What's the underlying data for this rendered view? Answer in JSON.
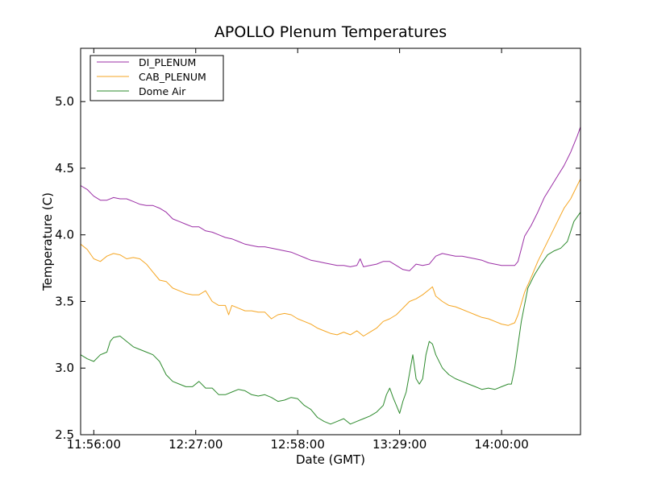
{
  "chart_data": {
    "type": "line",
    "title": "APOLLO Plenum Temperatures",
    "xlabel": "Date (GMT)",
    "ylabel": "Temperature (C)",
    "xlim": [
      -4,
      148
    ],
    "ylim": [
      2.5,
      5.4
    ],
    "x_unit": "minutes after 11:56:00",
    "xticks": [
      {
        "value": 0,
        "label": "11:56:00"
      },
      {
        "value": 31,
        "label": "12:27:00"
      },
      {
        "value": 62,
        "label": "12:58:00"
      },
      {
        "value": 93,
        "label": "13:29:00"
      },
      {
        "value": 124,
        "label": "14:00:00"
      }
    ],
    "yticks": [
      {
        "value": 2.5,
        "label": "2.5"
      },
      {
        "value": 3.0,
        "label": "3.0"
      },
      {
        "value": 3.5,
        "label": "3.5"
      },
      {
        "value": 4.0,
        "label": "4.0"
      },
      {
        "value": 4.5,
        "label": "4.5"
      },
      {
        "value": 5.0,
        "label": "5.0"
      }
    ],
    "legend": {
      "placement": "top-left"
    },
    "series": [
      {
        "name": "DI_PLENUM",
        "color": "#9b2fa6",
        "points": [
          [
            -4,
            4.37
          ],
          [
            -2,
            4.34
          ],
          [
            0,
            4.29
          ],
          [
            2,
            4.26
          ],
          [
            4,
            4.26
          ],
          [
            6,
            4.28
          ],
          [
            8,
            4.27
          ],
          [
            10,
            4.27
          ],
          [
            12,
            4.25
          ],
          [
            14,
            4.23
          ],
          [
            16,
            4.22
          ],
          [
            18,
            4.22
          ],
          [
            20,
            4.2
          ],
          [
            22,
            4.17
          ],
          [
            24,
            4.12
          ],
          [
            26,
            4.1
          ],
          [
            28,
            4.08
          ],
          [
            30,
            4.06
          ],
          [
            32,
            4.06
          ],
          [
            34,
            4.03
          ],
          [
            36,
            4.02
          ],
          [
            38,
            4.0
          ],
          [
            40,
            3.98
          ],
          [
            42,
            3.97
          ],
          [
            44,
            3.95
          ],
          [
            46,
            3.93
          ],
          [
            48,
            3.92
          ],
          [
            50,
            3.91
          ],
          [
            52,
            3.91
          ],
          [
            54,
            3.9
          ],
          [
            56,
            3.89
          ],
          [
            58,
            3.88
          ],
          [
            60,
            3.87
          ],
          [
            62,
            3.85
          ],
          [
            64,
            3.83
          ],
          [
            66,
            3.81
          ],
          [
            68,
            3.8
          ],
          [
            70,
            3.79
          ],
          [
            72,
            3.78
          ],
          [
            74,
            3.77
          ],
          [
            76,
            3.77
          ],
          [
            78,
            3.76
          ],
          [
            80,
            3.77
          ],
          [
            81,
            3.82
          ],
          [
            82,
            3.76
          ],
          [
            84,
            3.77
          ],
          [
            86,
            3.78
          ],
          [
            88,
            3.8
          ],
          [
            90,
            3.8
          ],
          [
            92,
            3.77
          ],
          [
            94,
            3.74
          ],
          [
            96,
            3.73
          ],
          [
            98,
            3.78
          ],
          [
            100,
            3.77
          ],
          [
            102,
            3.78
          ],
          [
            104,
            3.84
          ],
          [
            106,
            3.86
          ],
          [
            108,
            3.85
          ],
          [
            110,
            3.84
          ],
          [
            112,
            3.84
          ],
          [
            114,
            3.83
          ],
          [
            116,
            3.82
          ],
          [
            118,
            3.81
          ],
          [
            120,
            3.79
          ],
          [
            122,
            3.78
          ],
          [
            124,
            3.77
          ],
          [
            126,
            3.77
          ],
          [
            127,
            3.77
          ],
          [
            128,
            3.77
          ],
          [
            129,
            3.8
          ],
          [
            131,
            3.99
          ],
          [
            133,
            4.07
          ],
          [
            135,
            4.17
          ],
          [
            137,
            4.28
          ],
          [
            139,
            4.36
          ],
          [
            141,
            4.44
          ],
          [
            143,
            4.52
          ],
          [
            145,
            4.62
          ],
          [
            147,
            4.74
          ],
          [
            148,
            4.81
          ]
        ]
      },
      {
        "name": "CAB_PLENUM",
        "color": "#f5a623",
        "points": [
          [
            -4,
            3.93
          ],
          [
            -2,
            3.89
          ],
          [
            0,
            3.82
          ],
          [
            2,
            3.8
          ],
          [
            4,
            3.84
          ],
          [
            6,
            3.86
          ],
          [
            8,
            3.85
          ],
          [
            10,
            3.82
          ],
          [
            12,
            3.83
          ],
          [
            14,
            3.82
          ],
          [
            16,
            3.78
          ],
          [
            18,
            3.72
          ],
          [
            20,
            3.66
          ],
          [
            22,
            3.65
          ],
          [
            24,
            3.6
          ],
          [
            26,
            3.58
          ],
          [
            28,
            3.56
          ],
          [
            30,
            3.55
          ],
          [
            32,
            3.55
          ],
          [
            34,
            3.58
          ],
          [
            36,
            3.5
          ],
          [
            38,
            3.47
          ],
          [
            40,
            3.47
          ],
          [
            41,
            3.4
          ],
          [
            42,
            3.47
          ],
          [
            44,
            3.45
          ],
          [
            46,
            3.43
          ],
          [
            48,
            3.43
          ],
          [
            50,
            3.42
          ],
          [
            52,
            3.42
          ],
          [
            54,
            3.37
          ],
          [
            56,
            3.4
          ],
          [
            58,
            3.41
          ],
          [
            60,
            3.4
          ],
          [
            62,
            3.37
          ],
          [
            64,
            3.35
          ],
          [
            66,
            3.33
          ],
          [
            68,
            3.3
          ],
          [
            70,
            3.28
          ],
          [
            72,
            3.26
          ],
          [
            74,
            3.25
          ],
          [
            76,
            3.27
          ],
          [
            78,
            3.25
          ],
          [
            80,
            3.28
          ],
          [
            82,
            3.24
          ],
          [
            84,
            3.27
          ],
          [
            86,
            3.3
          ],
          [
            88,
            3.35
          ],
          [
            90,
            3.37
          ],
          [
            92,
            3.4
          ],
          [
            94,
            3.45
          ],
          [
            96,
            3.5
          ],
          [
            98,
            3.52
          ],
          [
            100,
            3.55
          ],
          [
            102,
            3.59
          ],
          [
            103,
            3.61
          ],
          [
            104,
            3.54
          ],
          [
            106,
            3.5
          ],
          [
            108,
            3.47
          ],
          [
            110,
            3.46
          ],
          [
            112,
            3.44
          ],
          [
            114,
            3.42
          ],
          [
            116,
            3.4
          ],
          [
            118,
            3.38
          ],
          [
            120,
            3.37
          ],
          [
            122,
            3.35
          ],
          [
            124,
            3.33
          ],
          [
            126,
            3.32
          ],
          [
            127,
            3.33
          ],
          [
            128,
            3.34
          ],
          [
            129,
            3.4
          ],
          [
            131,
            3.57
          ],
          [
            133,
            3.68
          ],
          [
            135,
            3.8
          ],
          [
            137,
            3.9
          ],
          [
            139,
            4.0
          ],
          [
            141,
            4.1
          ],
          [
            143,
            4.2
          ],
          [
            145,
            4.27
          ],
          [
            147,
            4.37
          ],
          [
            148,
            4.42
          ]
        ]
      },
      {
        "name": "Dome Air",
        "color": "#2e8b2e",
        "points": [
          [
            -4,
            3.1
          ],
          [
            -2,
            3.07
          ],
          [
            0,
            3.05
          ],
          [
            2,
            3.1
          ],
          [
            4,
            3.12
          ],
          [
            5,
            3.2
          ],
          [
            6,
            3.23
          ],
          [
            8,
            3.24
          ],
          [
            10,
            3.2
          ],
          [
            12,
            3.16
          ],
          [
            14,
            3.14
          ],
          [
            16,
            3.12
          ],
          [
            18,
            3.1
          ],
          [
            20,
            3.05
          ],
          [
            22,
            2.95
          ],
          [
            24,
            2.9
          ],
          [
            26,
            2.88
          ],
          [
            28,
            2.86
          ],
          [
            30,
            2.86
          ],
          [
            32,
            2.9
          ],
          [
            34,
            2.85
          ],
          [
            36,
            2.85
          ],
          [
            38,
            2.8
          ],
          [
            40,
            2.8
          ],
          [
            42,
            2.82
          ],
          [
            44,
            2.84
          ],
          [
            46,
            2.83
          ],
          [
            48,
            2.8
          ],
          [
            50,
            2.79
          ],
          [
            52,
            2.8
          ],
          [
            54,
            2.78
          ],
          [
            56,
            2.75
          ],
          [
            58,
            2.76
          ],
          [
            60,
            2.78
          ],
          [
            62,
            2.77
          ],
          [
            64,
            2.72
          ],
          [
            66,
            2.69
          ],
          [
            68,
            2.63
          ],
          [
            70,
            2.6
          ],
          [
            72,
            2.58
          ],
          [
            74,
            2.6
          ],
          [
            76,
            2.62
          ],
          [
            78,
            2.58
          ],
          [
            80,
            2.6
          ],
          [
            82,
            2.62
          ],
          [
            84,
            2.64
          ],
          [
            86,
            2.67
          ],
          [
            88,
            2.72
          ],
          [
            89,
            2.8
          ],
          [
            90,
            2.85
          ],
          [
            91,
            2.78
          ],
          [
            92,
            2.72
          ],
          [
            93,
            2.66
          ],
          [
            94,
            2.75
          ],
          [
            95,
            2.82
          ],
          [
            96,
            2.96
          ],
          [
            97,
            3.1
          ],
          [
            98,
            2.92
          ],
          [
            99,
            2.88
          ],
          [
            100,
            2.92
          ],
          [
            101,
            3.1
          ],
          [
            102,
            3.2
          ],
          [
            103,
            3.18
          ],
          [
            104,
            3.1
          ],
          [
            106,
            3.0
          ],
          [
            108,
            2.95
          ],
          [
            110,
            2.92
          ],
          [
            112,
            2.9
          ],
          [
            114,
            2.88
          ],
          [
            116,
            2.86
          ],
          [
            118,
            2.84
          ],
          [
            120,
            2.85
          ],
          [
            122,
            2.84
          ],
          [
            124,
            2.86
          ],
          [
            126,
            2.88
          ],
          [
            127,
            2.88
          ],
          [
            128,
            3.0
          ],
          [
            130,
            3.35
          ],
          [
            132,
            3.6
          ],
          [
            134,
            3.7
          ],
          [
            136,
            3.78
          ],
          [
            138,
            3.85
          ],
          [
            140,
            3.88
          ],
          [
            142,
            3.9
          ],
          [
            144,
            3.95
          ],
          [
            146,
            4.1
          ],
          [
            148,
            4.17
          ]
        ]
      }
    ]
  }
}
